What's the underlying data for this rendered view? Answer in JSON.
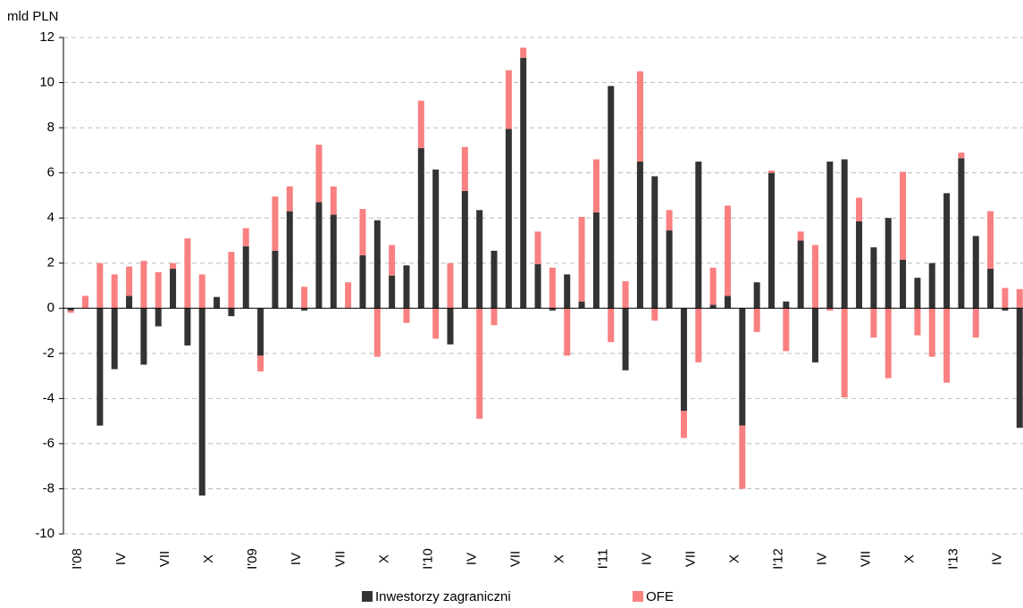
{
  "chart_data": {
    "type": "bar",
    "stacked": true,
    "y_label": "mld PLN",
    "categories": [
      "I'08",
      null,
      null,
      "IV",
      null,
      null,
      "VII",
      null,
      null,
      "X",
      null,
      null,
      "I'09",
      null,
      null,
      "IV",
      null,
      null,
      "VII",
      null,
      null,
      "X",
      null,
      null,
      "I'10",
      null,
      null,
      "IV",
      null,
      null,
      "VII",
      null,
      null,
      "X",
      null,
      null,
      "I'11",
      null,
      null,
      "IV",
      null,
      null,
      "VII",
      null,
      null,
      "X",
      null,
      null,
      "I'12",
      null,
      null,
      "IV",
      null,
      null,
      "VII",
      null,
      null,
      "X",
      null,
      null,
      "I'13",
      null,
      null,
      "IV",
      null,
      null
    ],
    "series": [
      {
        "name": "Inwestorzy zagraniczni",
        "color": "#333333",
        "values": [
          -0.1,
          0,
          -5.2,
          -2.7,
          0.55,
          -2.5,
          -0.8,
          1.75,
          -1.65,
          -8.3,
          0.5,
          -0.35,
          2.75,
          -2.1,
          2.55,
          4.3,
          -0.1,
          4.7,
          4.15,
          0,
          2.35,
          3.9,
          1.45,
          1.9,
          7.1,
          6.15,
          -1.6,
          5.2,
          4.35,
          2.55,
          7.95,
          11.1,
          1.95,
          -0.1,
          1.5,
          0.3,
          4.25,
          9.85,
          -2.75,
          6.5,
          5.85,
          3.45,
          -4.55,
          6.5,
          0.15,
          0.55,
          -5.2,
          1.15,
          6.0,
          0.3,
          3.0,
          -2.4,
          6.5,
          6.6,
          3.85,
          2.7,
          4.0,
          2.15,
          1.35,
          2.0,
          5.1,
          6.65,
          3.2,
          1.75,
          -0.1,
          -5.3
        ]
      },
      {
        "name": "OFE",
        "color": "#f98080",
        "values": [
          -0.1,
          0.55,
          2.0,
          1.5,
          1.3,
          2.1,
          1.6,
          0.25,
          3.1,
          1.5,
          0,
          2.5,
          0.8,
          -0.7,
          2.4,
          1.1,
          0.95,
          2.55,
          1.25,
          1.15,
          2.05,
          -2.15,
          1.35,
          -0.65,
          2.1,
          -1.35,
          2.0,
          1.95,
          -4.9,
          -0.75,
          2.6,
          0.45,
          1.45,
          1.8,
          -2.1,
          3.75,
          2.35,
          -1.5,
          1.2,
          4.0,
          -0.55,
          0.9,
          -1.2,
          -2.4,
          1.65,
          4.0,
          -2.8,
          -1.05,
          0.1,
          -1.9,
          0.4,
          2.8,
          -0.1,
          -3.95,
          1.05,
          -1.3,
          -3.1,
          3.9,
          -1.2,
          -2.15,
          -3.3,
          0.25,
          -1.3,
          2.55,
          0.9,
          0.85
        ]
      }
    ],
    "ylim": [
      -10,
      12
    ],
    "yticks": [
      -10,
      -8,
      -6,
      -4,
      -2,
      0,
      2,
      4,
      6,
      8,
      10,
      12
    ],
    "grid": true,
    "legend": "bottom"
  }
}
